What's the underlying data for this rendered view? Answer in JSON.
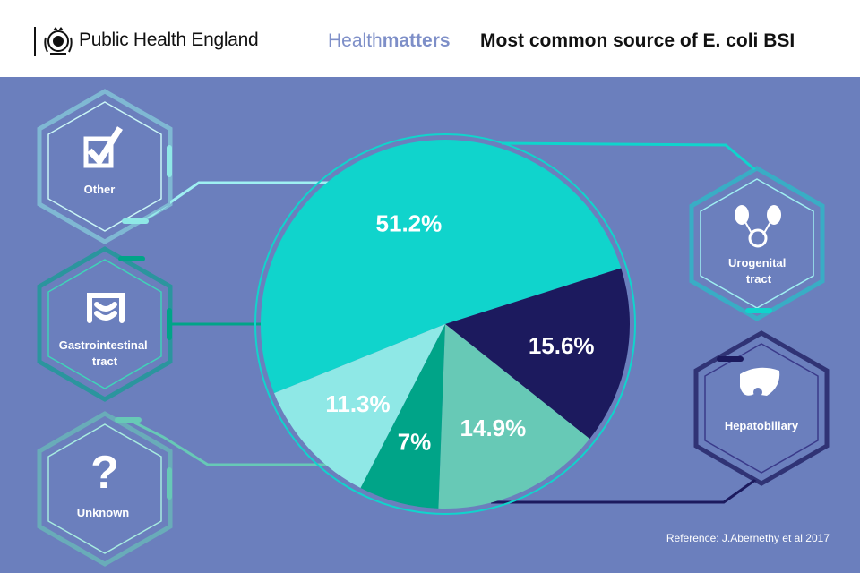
{
  "header": {
    "org_name": "Public Health England",
    "brand_light": "Health",
    "brand_bold": "matters",
    "title": "Most common source of E. coli BSI"
  },
  "chart_data": {
    "type": "pie",
    "title": "Most common source of E. coli BSI",
    "unit": "%",
    "slices": [
      {
        "label": "Urogenital tract",
        "value": 51.2,
        "display": "51.2%",
        "color": "#10d4cc",
        "icon": "kidneys-bladder-icon"
      },
      {
        "label": "Hepatobiliary",
        "value": 15.6,
        "display": "15.6%",
        "color": "#1c1a5e",
        "icon": "liver-icon"
      },
      {
        "label": "Unknown",
        "value": 14.9,
        "display": "14.9%",
        "color": "#67c9b6",
        "icon": "question-mark-icon"
      },
      {
        "label": "Gastrointestinal tract",
        "value": 7,
        "display": "7%",
        "color": "#00a488",
        "icon": "intestine-icon"
      },
      {
        "label": "Other",
        "value": 11.3,
        "display": "11.3%",
        "color": "#8fe8e6",
        "icon": "checkbox-tick-icon"
      }
    ],
    "legend": "hexagon callouts around the pie"
  },
  "reference": "Reference: J.Abernethy et al 2017",
  "colors": {
    "background": "#6b7fbd",
    "header_bg": "#ffffff",
    "brand_accent": "#7e8fc8"
  }
}
